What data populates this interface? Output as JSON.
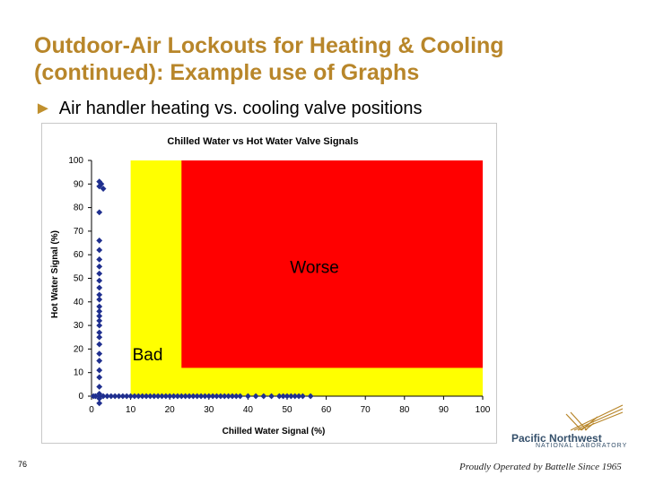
{
  "slide": {
    "title": "Outdoor-Air Lockouts for Heating & Cooling (continued): Example use of Graphs",
    "bullet": "Air handler heating vs. cooling valve positions",
    "page_number": "76",
    "logo_name": "Pacific Northwest",
    "logo_sub": "NATIONAL LABORATORY",
    "footer": "Proudly Operated by Battelle Since 1965"
  },
  "colors": {
    "title": "#b8862a",
    "bullet_arrow": "#c0902e",
    "zone_bad": "#ffff00",
    "zone_worse": "#ff0000",
    "markers": "#1f2f8f"
  },
  "chart_data": {
    "type": "scatter",
    "title": "Chilled Water vs Hot Water Valve Signals",
    "xlabel": "Chilled Water Signal (%)",
    "ylabel": "Hot Water Signal (%)",
    "xlim": [
      0,
      100
    ],
    "ylim": [
      0,
      100
    ],
    "xticks": [
      0,
      10,
      20,
      30,
      40,
      50,
      60,
      70,
      80,
      90,
      100
    ],
    "yticks": [
      0,
      10,
      20,
      30,
      40,
      50,
      60,
      70,
      80,
      90,
      100
    ],
    "grid": false,
    "zones": [
      {
        "label": "Bad",
        "x": [
          10,
          100
        ],
        "y": [
          0,
          100
        ],
        "color": "#ffff00"
      },
      {
        "label": "Worse",
        "x": [
          23,
          100
        ],
        "y": [
          12,
          100
        ],
        "color": "#ff0000"
      }
    ],
    "series": [
      {
        "marker": "diamond",
        "points": [
          [
            2,
            91
          ],
          [
            2.5,
            90
          ],
          [
            2,
            89
          ],
          [
            3,
            88
          ],
          [
            2,
            78
          ],
          [
            2,
            66
          ],
          [
            2,
            62
          ],
          [
            2,
            58
          ],
          [
            2,
            55
          ],
          [
            2,
            52
          ],
          [
            2,
            49
          ],
          [
            2,
            46
          ],
          [
            2,
            43
          ],
          [
            2,
            41
          ],
          [
            2,
            38
          ],
          [
            2,
            36
          ],
          [
            2,
            34
          ],
          [
            2,
            32
          ],
          [
            2,
            30
          ],
          [
            2,
            27
          ],
          [
            2,
            25
          ],
          [
            2,
            22
          ],
          [
            2,
            18
          ],
          [
            2,
            15
          ],
          [
            2,
            11
          ],
          [
            2,
            8
          ],
          [
            2,
            4
          ],
          [
            2,
            1
          ],
          [
            2,
            -1
          ],
          [
            2,
            -3
          ],
          [
            0.5,
            0
          ],
          [
            1,
            0
          ],
          [
            2,
            0
          ],
          [
            3,
            0
          ],
          [
            4,
            0
          ],
          [
            5,
            0
          ],
          [
            6,
            0
          ],
          [
            7,
            0
          ],
          [
            8,
            0
          ],
          [
            9,
            0
          ],
          [
            10,
            0
          ],
          [
            11,
            0
          ],
          [
            12,
            0
          ],
          [
            13,
            0
          ],
          [
            14,
            0
          ],
          [
            15,
            0
          ],
          [
            16,
            0
          ],
          [
            17,
            0
          ],
          [
            18,
            0
          ],
          [
            19,
            0
          ],
          [
            20,
            0
          ],
          [
            21,
            0
          ],
          [
            22,
            0
          ],
          [
            23,
            0
          ],
          [
            24,
            0
          ],
          [
            25,
            0
          ],
          [
            26,
            0
          ],
          [
            27,
            0
          ],
          [
            28,
            0
          ],
          [
            29,
            0
          ],
          [
            30,
            0
          ],
          [
            31,
            0
          ],
          [
            32,
            0
          ],
          [
            33,
            0
          ],
          [
            34,
            0
          ],
          [
            35,
            0
          ],
          [
            36,
            0
          ],
          [
            37,
            0
          ],
          [
            38,
            0
          ],
          [
            40,
            0
          ],
          [
            42,
            0
          ],
          [
            44,
            0
          ],
          [
            46,
            0
          ],
          [
            48,
            0
          ],
          [
            49,
            0
          ],
          [
            50,
            0
          ],
          [
            51,
            0
          ],
          [
            52,
            0
          ],
          [
            53,
            0
          ],
          [
            54,
            0
          ],
          [
            56,
            0
          ]
        ]
      }
    ]
  }
}
